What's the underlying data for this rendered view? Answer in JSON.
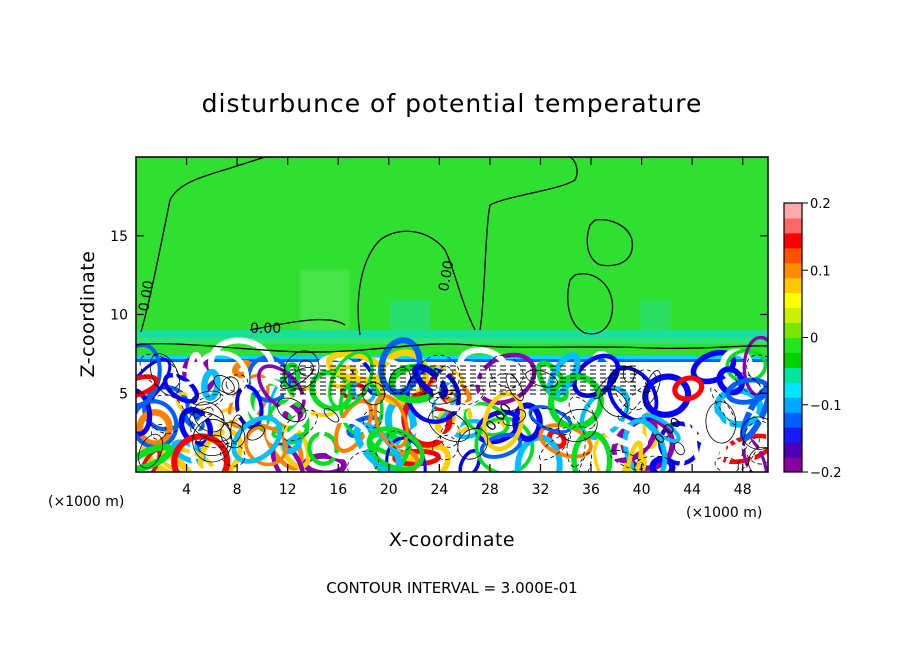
{
  "chart_data": {
    "type": "heatmap",
    "title": "disturbunce of potential temperature",
    "xlabel": "X-coordinate",
    "ylabel": "Z-coordinate",
    "x_unit": "(×1000 m)",
    "z_unit": "(×1000 m)",
    "xlim": [
      0,
      50
    ],
    "ylim": [
      0,
      20
    ],
    "x_ticks": [
      4,
      8,
      12,
      16,
      20,
      24,
      28,
      32,
      36,
      40,
      44,
      48
    ],
    "y_ticks": [
      5,
      10,
      15
    ],
    "colorbar": {
      "range": [
        -0.2,
        0.2
      ],
      "ticks": [
        0.2,
        0.1,
        0,
        -0.1,
        -0.2
      ],
      "tick_labels": [
        "0.2",
        "0.1",
        "0",
        "−0.1",
        "−0.2"
      ],
      "colors": [
        "#8a009e",
        "#4b00b8",
        "#1a1aff",
        "#0060ff",
        "#00a8ff",
        "#00e6ff",
        "#00e6a0",
        "#00d200",
        "#22e61e",
        "#7be600",
        "#c8f000",
        "#ffff00",
        "#ffc800",
        "#ff8c00",
        "#ff5000",
        "#ff0000",
        "#ff6666",
        "#ffaaaa"
      ]
    },
    "contour_label": "0.00",
    "footer": "CONTOUR INTERVAL = 3.000E-01",
    "field_description_free": true
  }
}
